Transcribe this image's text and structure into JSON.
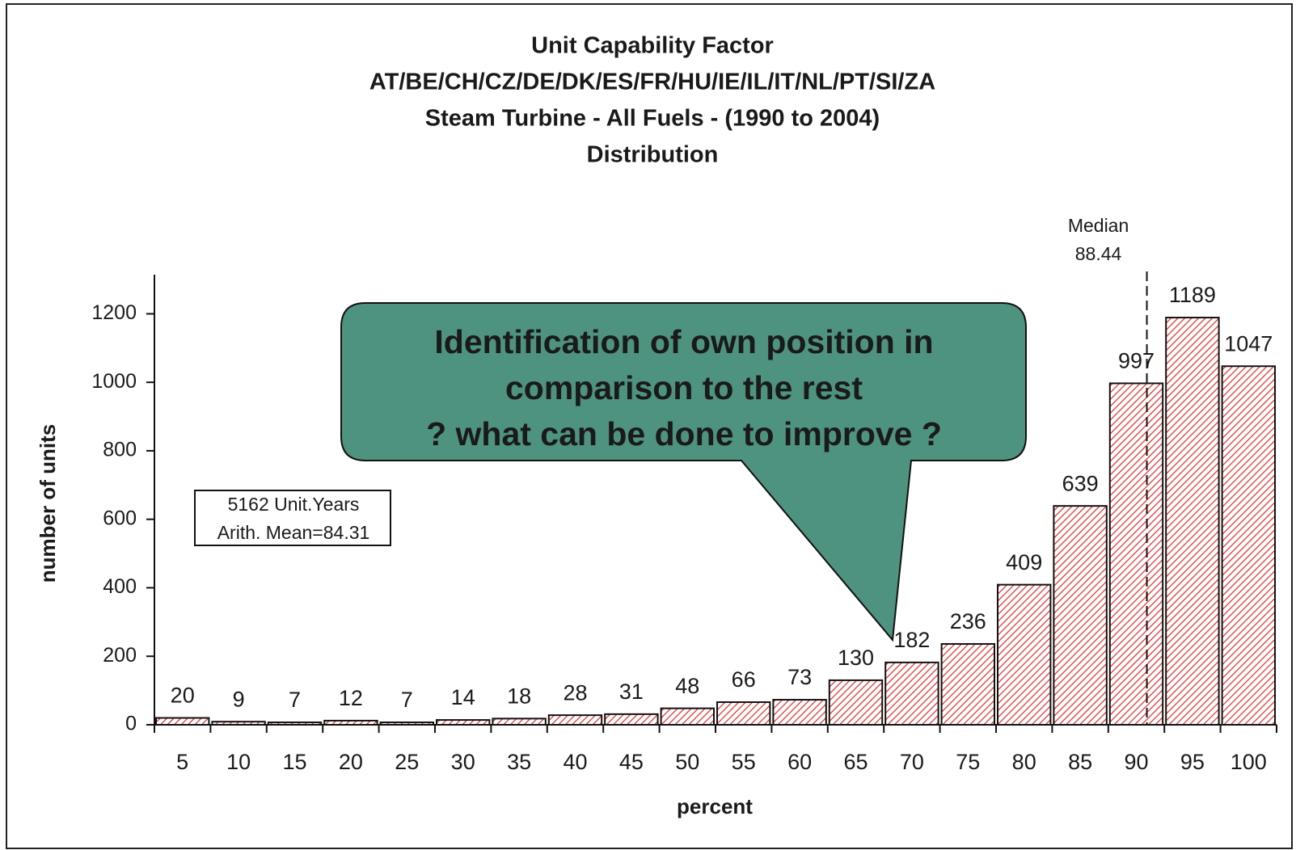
{
  "chart_data": {
    "type": "bar",
    "title": [
      "Unit Capability Factor",
      "AT/BE/CH/CZ/DE/DK/ES/FR/HU/IE/IL/IT/NL/PT/SI/ZA",
      "Steam Turbine - All Fuels - (1990 to 2004)",
      "Distribution"
    ],
    "x_label": "percent",
    "y_label": "number of units",
    "categories": [
      "5",
      "10",
      "15",
      "20",
      "25",
      "30",
      "35",
      "40",
      "45",
      "50",
      "55",
      "60",
      "65",
      "70",
      "75",
      "80",
      "85",
      "90",
      "95",
      "100"
    ],
    "values": [
      20,
      9,
      7,
      12,
      7,
      14,
      18,
      28,
      31,
      48,
      66,
      73,
      130,
      182,
      236,
      409,
      639,
      997,
      1189,
      1047
    ],
    "color": "#e03030",
    "xlim": [
      0,
      100
    ],
    "ylim": [
      0,
      1300
    ],
    "yticks": [
      0,
      200,
      400,
      600,
      800,
      1000,
      1200
    ],
    "median": {
      "label": "Median",
      "value": 88.44
    },
    "info_box": [
      "5162 Unit.Years",
      "Arith. Mean=84.31"
    ],
    "callout": [
      "Identification of own position in",
      "comparison to the rest",
      "? what can be done to improve ?"
    ]
  }
}
